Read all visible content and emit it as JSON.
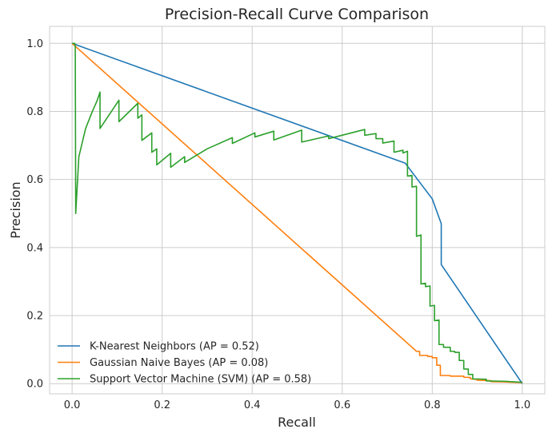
{
  "chart_data": {
    "type": "line",
    "title": "Precision-Recall Curve Comparison",
    "xlabel": "Recall",
    "ylabel": "Precision",
    "xlim": [
      -0.05,
      1.05
    ],
    "ylim": [
      -0.03,
      1.05
    ],
    "xticks": [
      "0.0",
      "0.2",
      "0.4",
      "0.6",
      "0.8",
      "1.0"
    ],
    "yticks": [
      "0.0",
      "0.2",
      "0.4",
      "0.6",
      "0.8",
      "1.0"
    ],
    "grid": true,
    "legend_position": "lower-left",
    "series": [
      {
        "name": "K-Nearest Neighbors (AP = 0.52)",
        "color": "#1f77b4",
        "points": [
          [
            0.0,
            1.0
          ],
          [
            0.74,
            0.648
          ],
          [
            0.8,
            0.543
          ],
          [
            0.82,
            0.47
          ],
          [
            0.82,
            0.35
          ],
          [
            1.0,
            0.0
          ]
        ]
      },
      {
        "name": "Gaussian Naive Bayes (AP = 0.08)",
        "color": "#ff7f0e",
        "points": [
          [
            0.0,
            1.0
          ],
          [
            0.765,
            0.095
          ],
          [
            0.772,
            0.095
          ],
          [
            0.772,
            0.083
          ],
          [
            0.79,
            0.083
          ],
          [
            0.79,
            0.08
          ],
          [
            0.8,
            0.08
          ],
          [
            0.8,
            0.076
          ],
          [
            0.81,
            0.076
          ],
          [
            0.81,
            0.054
          ],
          [
            0.818,
            0.054
          ],
          [
            0.818,
            0.024
          ],
          [
            0.84,
            0.024
          ],
          [
            0.84,
            0.022
          ],
          [
            0.87,
            0.022
          ],
          [
            0.87,
            0.019
          ],
          [
            0.885,
            0.018
          ],
          [
            0.885,
            0.014
          ],
          [
            0.9,
            0.012
          ],
          [
            0.9,
            0.01
          ],
          [
            0.93,
            0.009
          ],
          [
            0.93,
            0.006
          ],
          [
            0.96,
            0.005
          ],
          [
            1.0,
            0.003
          ]
        ]
      },
      {
        "name": "Support Vector Machine (SVM) (AP = 0.58)",
        "color": "#2ca02c",
        "points": [
          [
            0.0,
            1.0
          ],
          [
            0.006,
            1.0
          ],
          [
            0.007,
            0.99
          ],
          [
            0.008,
            0.5
          ],
          [
            0.015,
            0.667
          ],
          [
            0.03,
            0.75
          ],
          [
            0.045,
            0.8
          ],
          [
            0.055,
            0.83
          ],
          [
            0.062,
            0.857
          ],
          [
            0.062,
            0.75
          ],
          [
            0.104,
            0.833
          ],
          [
            0.104,
            0.77
          ],
          [
            0.146,
            0.824
          ],
          [
            0.146,
            0.78
          ],
          [
            0.155,
            0.79
          ],
          [
            0.155,
            0.715
          ],
          [
            0.177,
            0.737
          ],
          [
            0.177,
            0.68
          ],
          [
            0.188,
            0.69
          ],
          [
            0.188,
            0.643
          ],
          [
            0.219,
            0.677
          ],
          [
            0.219,
            0.636
          ],
          [
            0.25,
            0.667
          ],
          [
            0.25,
            0.65
          ],
          [
            0.3,
            0.69
          ],
          [
            0.356,
            0.723
          ],
          [
            0.356,
            0.706
          ],
          [
            0.406,
            0.737
          ],
          [
            0.406,
            0.725
          ],
          [
            0.448,
            0.742
          ],
          [
            0.448,
            0.716
          ],
          [
            0.51,
            0.745
          ],
          [
            0.51,
            0.71
          ],
          [
            0.57,
            0.728
          ],
          [
            0.57,
            0.72
          ],
          [
            0.65,
            0.747
          ],
          [
            0.65,
            0.73
          ],
          [
            0.675,
            0.735
          ],
          [
            0.675,
            0.72
          ],
          [
            0.69,
            0.72
          ],
          [
            0.69,
            0.707
          ],
          [
            0.715,
            0.713
          ],
          [
            0.715,
            0.68
          ],
          [
            0.735,
            0.686
          ],
          [
            0.735,
            0.678
          ],
          [
            0.745,
            0.683
          ],
          [
            0.745,
            0.61
          ],
          [
            0.755,
            0.612
          ],
          [
            0.755,
            0.578
          ],
          [
            0.765,
            0.58
          ],
          [
            0.765,
            0.433
          ],
          [
            0.775,
            0.437
          ],
          [
            0.775,
            0.293
          ],
          [
            0.785,
            0.295
          ],
          [
            0.785,
            0.285
          ],
          [
            0.795,
            0.287
          ],
          [
            0.795,
            0.228
          ],
          [
            0.805,
            0.23
          ],
          [
            0.805,
            0.185
          ],
          [
            0.815,
            0.187
          ],
          [
            0.815,
            0.115
          ],
          [
            0.825,
            0.115
          ],
          [
            0.825,
            0.107
          ],
          [
            0.84,
            0.107
          ],
          [
            0.84,
            0.095
          ],
          [
            0.85,
            0.095
          ],
          [
            0.85,
            0.092
          ],
          [
            0.86,
            0.092
          ],
          [
            0.86,
            0.068
          ],
          [
            0.87,
            0.068
          ],
          [
            0.87,
            0.043
          ],
          [
            0.88,
            0.043
          ],
          [
            0.88,
            0.027
          ],
          [
            0.89,
            0.027
          ],
          [
            0.89,
            0.014
          ],
          [
            0.92,
            0.013
          ],
          [
            0.92,
            0.008
          ],
          [
            0.96,
            0.007
          ],
          [
            1.0,
            0.004
          ]
        ]
      }
    ]
  }
}
